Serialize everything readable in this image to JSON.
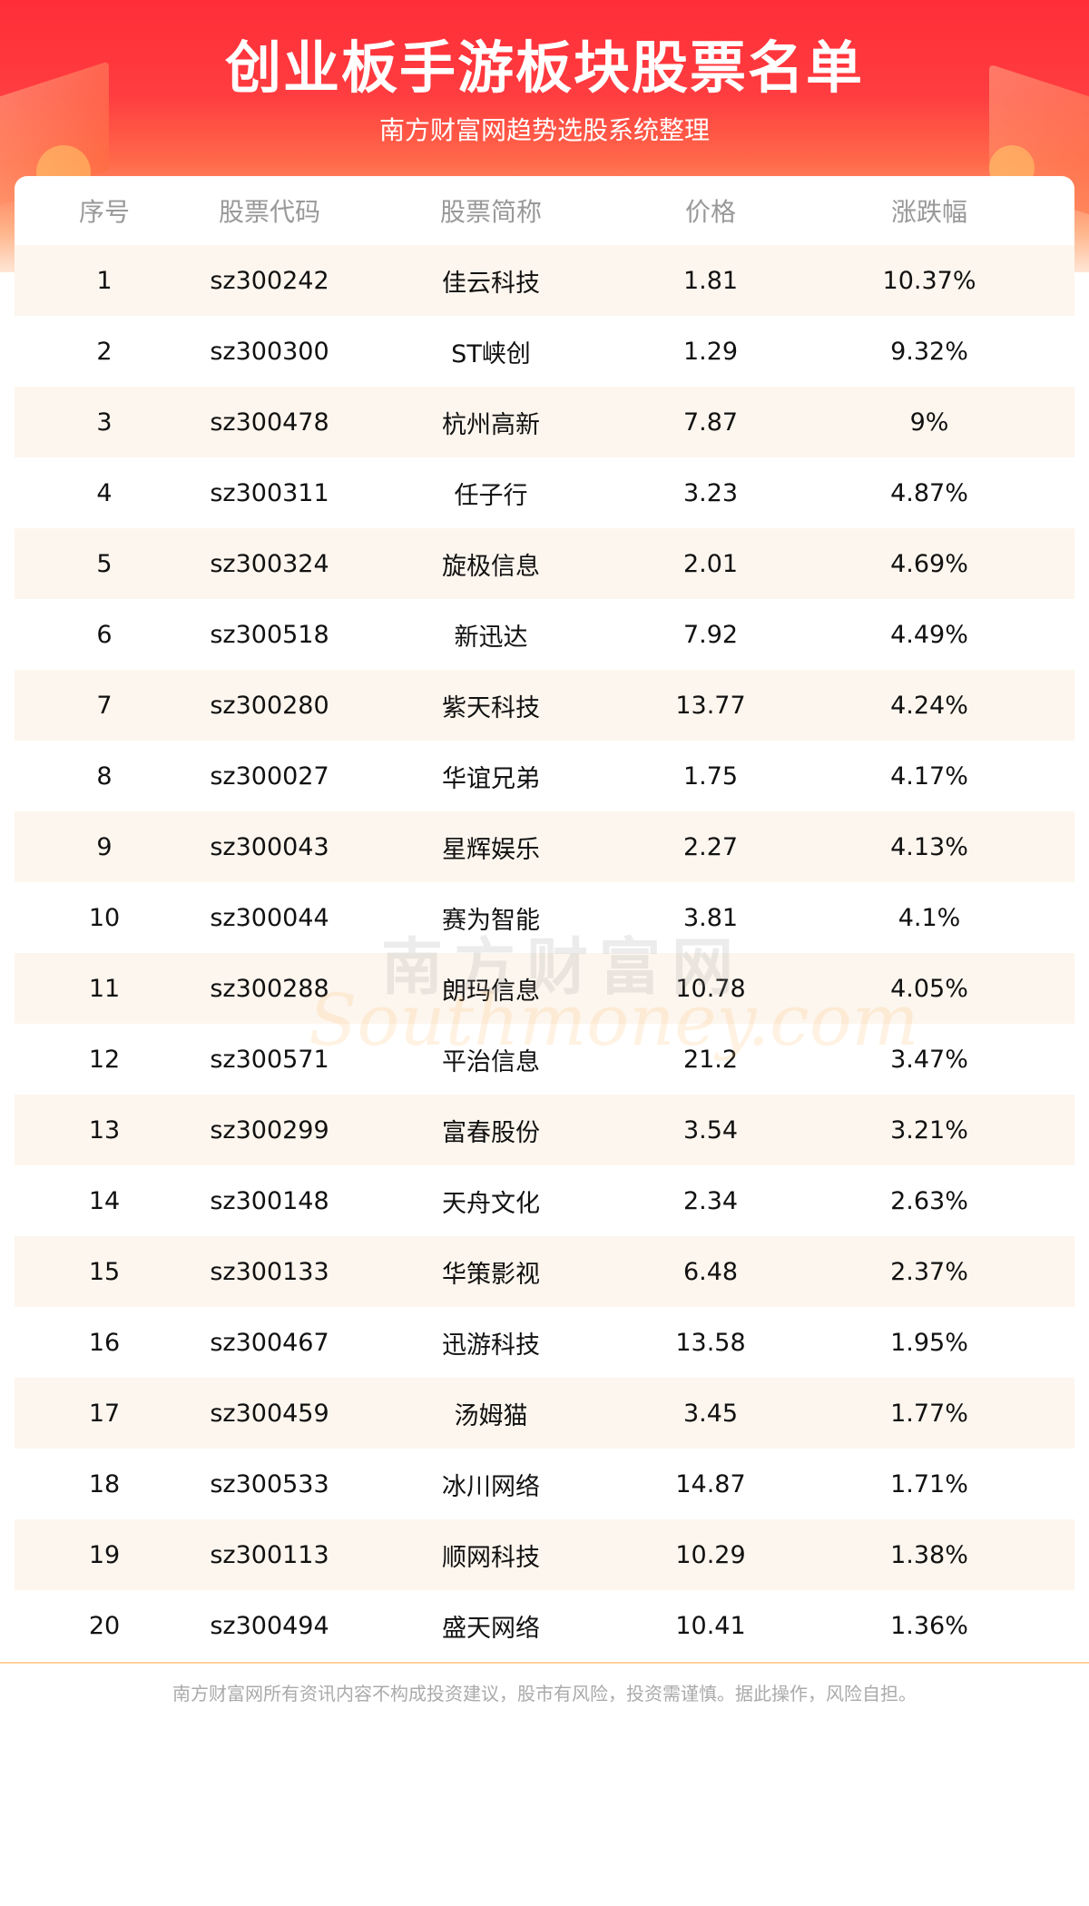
{
  "header": {
    "title": "创业板手游板块股票名单",
    "subtitle": "南方财富网趋势选股系统整理"
  },
  "table": {
    "columns": [
      "序号",
      "股票代码",
      "股票简称",
      "价格",
      "涨跌幅"
    ],
    "rows": [
      [
        "1",
        "sz300242",
        "佳云科技",
        "1.81",
        "10.37%"
      ],
      [
        "2",
        "sz300300",
        "ST峡创",
        "1.29",
        "9.32%"
      ],
      [
        "3",
        "sz300478",
        "杭州高新",
        "7.87",
        "9%"
      ],
      [
        "4",
        "sz300311",
        "任子行",
        "3.23",
        "4.87%"
      ],
      [
        "5",
        "sz300324",
        "旋极信息",
        "2.01",
        "4.69%"
      ],
      [
        "6",
        "sz300518",
        "新迅达",
        "7.92",
        "4.49%"
      ],
      [
        "7",
        "sz300280",
        "紫天科技",
        "13.77",
        "4.24%"
      ],
      [
        "8",
        "sz300027",
        "华谊兄弟",
        "1.75",
        "4.17%"
      ],
      [
        "9",
        "sz300043",
        "星辉娱乐",
        "2.27",
        "4.13%"
      ],
      [
        "10",
        "sz300044",
        "赛为智能",
        "3.81",
        "4.1%"
      ],
      [
        "11",
        "sz300288",
        "朗玛信息",
        "10.78",
        "4.05%"
      ],
      [
        "12",
        "sz300571",
        "平治信息",
        "21.2",
        "3.47%"
      ],
      [
        "13",
        "sz300299",
        "富春股份",
        "3.54",
        "3.21%"
      ],
      [
        "14",
        "sz300148",
        "天舟文化",
        "2.34",
        "2.63%"
      ],
      [
        "15",
        "sz300133",
        "华策影视",
        "6.48",
        "2.37%"
      ],
      [
        "16",
        "sz300467",
        "迅游科技",
        "13.58",
        "1.95%"
      ],
      [
        "17",
        "sz300459",
        "汤姆猫",
        "3.45",
        "1.77%"
      ],
      [
        "18",
        "sz300533",
        "冰川网络",
        "14.87",
        "1.71%"
      ],
      [
        "19",
        "sz300113",
        "顺网科技",
        "10.29",
        "1.38%"
      ],
      [
        "20",
        "sz300494",
        "盛天网络",
        "10.41",
        "1.36%"
      ]
    ]
  },
  "watermark": {
    "cn": "南方财富网",
    "en": "Southmoney.com"
  },
  "footer": {
    "disclaimer": "南方财富网所有资讯内容不构成投资建议，股市有风险，投资需谨慎。据此操作，风险自担。"
  },
  "colors": {
    "banner_red": "#ff2d38",
    "row_alt": "#fdf6ee",
    "divider": "#ffcf9e"
  }
}
